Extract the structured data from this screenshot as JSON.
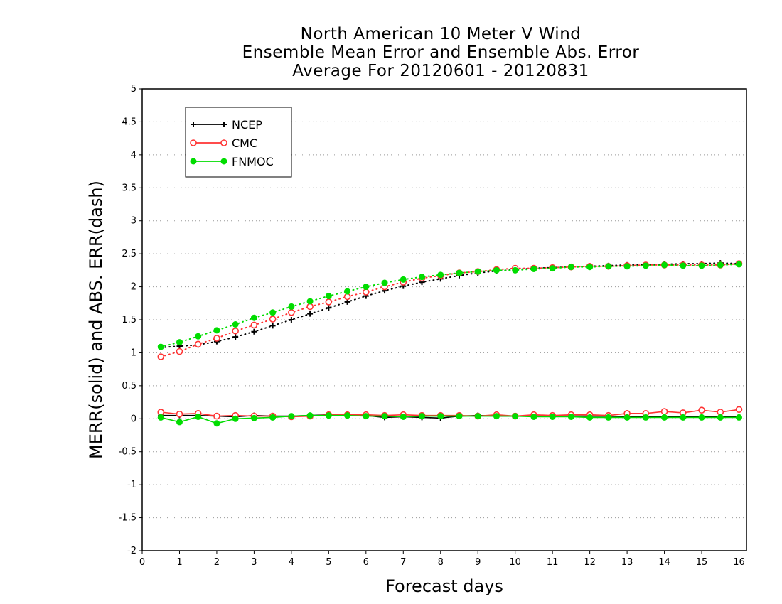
{
  "title_lines": [
    "North American 10 Meter V Wind",
    "Ensemble Mean Error and Ensemble Abs. Error",
    "Average For 20120601 - 20120831"
  ],
  "chart_data": {
    "type": "line",
    "xlabel": "Forecast days",
    "ylabel": "MERR(solid) and ABS. ERR(dash)",
    "xlim": [
      0,
      16.2
    ],
    "ylim": [
      -2,
      5
    ],
    "xticks": [
      0,
      1,
      2,
      3,
      4,
      5,
      6,
      7,
      8,
      9,
      10,
      11,
      12,
      13,
      14,
      15,
      16
    ],
    "yticks": [
      -2,
      -1.5,
      -1,
      -0.5,
      0,
      0.5,
      1,
      1.5,
      2,
      2.5,
      3,
      3.5,
      4,
      4.5,
      5
    ],
    "ytick_labels": [
      "-2",
      "-1.5",
      "-1",
      "-0.5",
      "0",
      "0.5",
      "1",
      "1.5",
      "2",
      "2.5",
      "3",
      "3.5",
      "4",
      "4.5",
      "5"
    ],
    "grid": "horizontal dotted",
    "legend_position": "top-left",
    "x": [
      0.5,
      1,
      1.5,
      2,
      2.5,
      3,
      3.5,
      4,
      4.5,
      5,
      5.5,
      6,
      6.5,
      7,
      7.5,
      8,
      8.5,
      9,
      9.5,
      10,
      10.5,
      11,
      11.5,
      12,
      12.5,
      13,
      13.5,
      14,
      14.5,
      15,
      15.5,
      16
    ],
    "series": [
      {
        "name": "NCEP",
        "color": "#000000",
        "marker": "plus",
        "merr": [
          0.05,
          0.05,
          0.05,
          0.04,
          0.03,
          0.05,
          0.04,
          0.04,
          0.05,
          0.06,
          0.06,
          0.05,
          0.02,
          0.03,
          0.02,
          0.01,
          0.04,
          0.05,
          0.04,
          0.04,
          0.04,
          0.04,
          0.04,
          0.04,
          0.04,
          0.03,
          0.03,
          0.03,
          0.03,
          0.03,
          0.03,
          0.03
        ],
        "abs_err": [
          1.08,
          1.1,
          1.12,
          1.17,
          1.24,
          1.32,
          1.41,
          1.5,
          1.59,
          1.68,
          1.77,
          1.86,
          1.94,
          2.01,
          2.07,
          2.12,
          2.17,
          2.21,
          2.24,
          2.26,
          2.28,
          2.29,
          2.3,
          2.31,
          2.32,
          2.33,
          2.33,
          2.34,
          2.35,
          2.35,
          2.36,
          2.35
        ]
      },
      {
        "name": "CMC",
        "color": "#ff3333",
        "marker": "open-circle",
        "merr": [
          0.1,
          0.07,
          0.08,
          0.04,
          0.05,
          0.04,
          0.04,
          0.03,
          0.04,
          0.06,
          0.06,
          0.06,
          0.05,
          0.06,
          0.05,
          0.05,
          0.05,
          0.04,
          0.06,
          0.04,
          0.06,
          0.05,
          0.06,
          0.06,
          0.05,
          0.08,
          0.08,
          0.11,
          0.09,
          0.13,
          0.1,
          0.14
        ],
        "abs_err": [
          0.94,
          1.02,
          1.13,
          1.22,
          1.33,
          1.42,
          1.51,
          1.61,
          1.7,
          1.77,
          1.85,
          1.92,
          2.0,
          2.07,
          2.13,
          2.17,
          2.21,
          2.23,
          2.26,
          2.28,
          2.28,
          2.29,
          2.3,
          2.31,
          2.31,
          2.32,
          2.33,
          2.33,
          2.33,
          2.33,
          2.33,
          2.35
        ]
      },
      {
        "name": "FNMOC",
        "color": "#00dd00",
        "marker": "filled-circle",
        "merr": [
          0.02,
          -0.05,
          0.03,
          -0.07,
          0.0,
          0.01,
          0.02,
          0.04,
          0.05,
          0.05,
          0.05,
          0.04,
          0.04,
          0.03,
          0.04,
          0.04,
          0.04,
          0.04,
          0.04,
          0.04,
          0.03,
          0.03,
          0.03,
          0.02,
          0.02,
          0.02,
          0.02,
          0.02,
          0.02,
          0.02,
          0.02,
          0.02
        ],
        "abs_err": [
          1.09,
          1.16,
          1.25,
          1.34,
          1.43,
          1.53,
          1.61,
          1.7,
          1.78,
          1.86,
          1.93,
          2.0,
          2.06,
          2.11,
          2.15,
          2.18,
          2.21,
          2.23,
          2.25,
          2.25,
          2.27,
          2.28,
          2.3,
          2.3,
          2.31,
          2.31,
          2.32,
          2.33,
          2.32,
          2.32,
          2.33,
          2.34
        ]
      }
    ]
  }
}
